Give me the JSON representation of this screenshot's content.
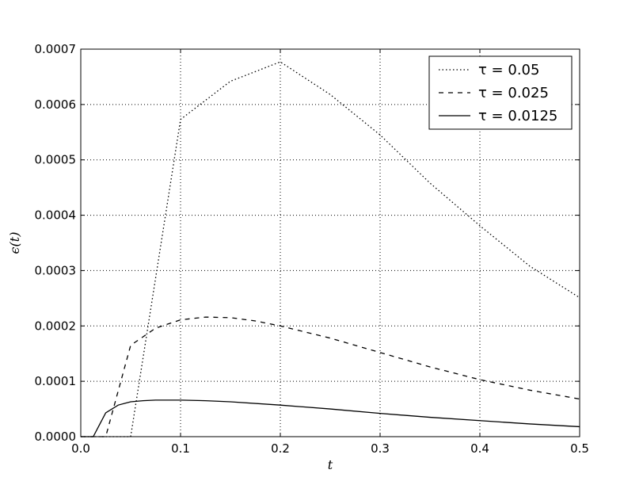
{
  "chart_data": {
    "type": "line",
    "xlabel": "t",
    "ylabel": "ϵ(t)",
    "xlim": [
      0.0,
      0.5
    ],
    "ylim": [
      0.0,
      0.0007
    ],
    "grid": true,
    "legend_position": "top-right",
    "xticks": [
      "0.0",
      "0.1",
      "0.2",
      "0.3",
      "0.4",
      "0.5"
    ],
    "yticks": [
      "0.0000",
      "0.0001",
      "0.0002",
      "0.0003",
      "0.0004",
      "0.0005",
      "0.0006",
      "0.0007"
    ],
    "series": [
      {
        "name": "τ = 0.05",
        "style": "dotted",
        "x": [
          0.0,
          0.05,
          0.1,
          0.15,
          0.2,
          0.25,
          0.3,
          0.35,
          0.4,
          0.45,
          0.5
        ],
        "y": [
          0.0,
          0.0,
          0.000573,
          0.000642,
          0.000677,
          0.000618,
          0.000545,
          0.000458,
          0.000381,
          0.000308,
          0.000251
        ]
      },
      {
        "name": "τ = 0.025",
        "style": "dashed",
        "x": [
          0.0,
          0.025,
          0.05,
          0.075,
          0.1,
          0.125,
          0.15,
          0.175,
          0.2,
          0.25,
          0.3,
          0.35,
          0.4,
          0.45,
          0.5
        ],
        "y": [
          0.0,
          0.0,
          0.000165,
          0.000196,
          0.000211,
          0.000216,
          0.000215,
          0.000209,
          0.0002,
          0.000178,
          0.000152,
          0.000126,
          0.000103,
          8.4e-05,
          6.8e-05
        ]
      },
      {
        "name": "τ = 0.0125",
        "style": "solid",
        "x": [
          0.0,
          0.0125,
          0.025,
          0.0375,
          0.05,
          0.0625,
          0.075,
          0.1,
          0.125,
          0.15,
          0.2,
          0.25,
          0.3,
          0.35,
          0.4,
          0.45,
          0.5
        ],
        "y": [
          0.0,
          0.0,
          4.3e-05,
          5.7e-05,
          6.3e-05,
          6.5e-05,
          6.6e-05,
          6.6e-05,
          6.5e-05,
          6.3e-05,
          5.7e-05,
          5e-05,
          4.2e-05,
          3.5e-05,
          2.9e-05,
          2.3e-05,
          1.8e-05
        ]
      }
    ]
  }
}
